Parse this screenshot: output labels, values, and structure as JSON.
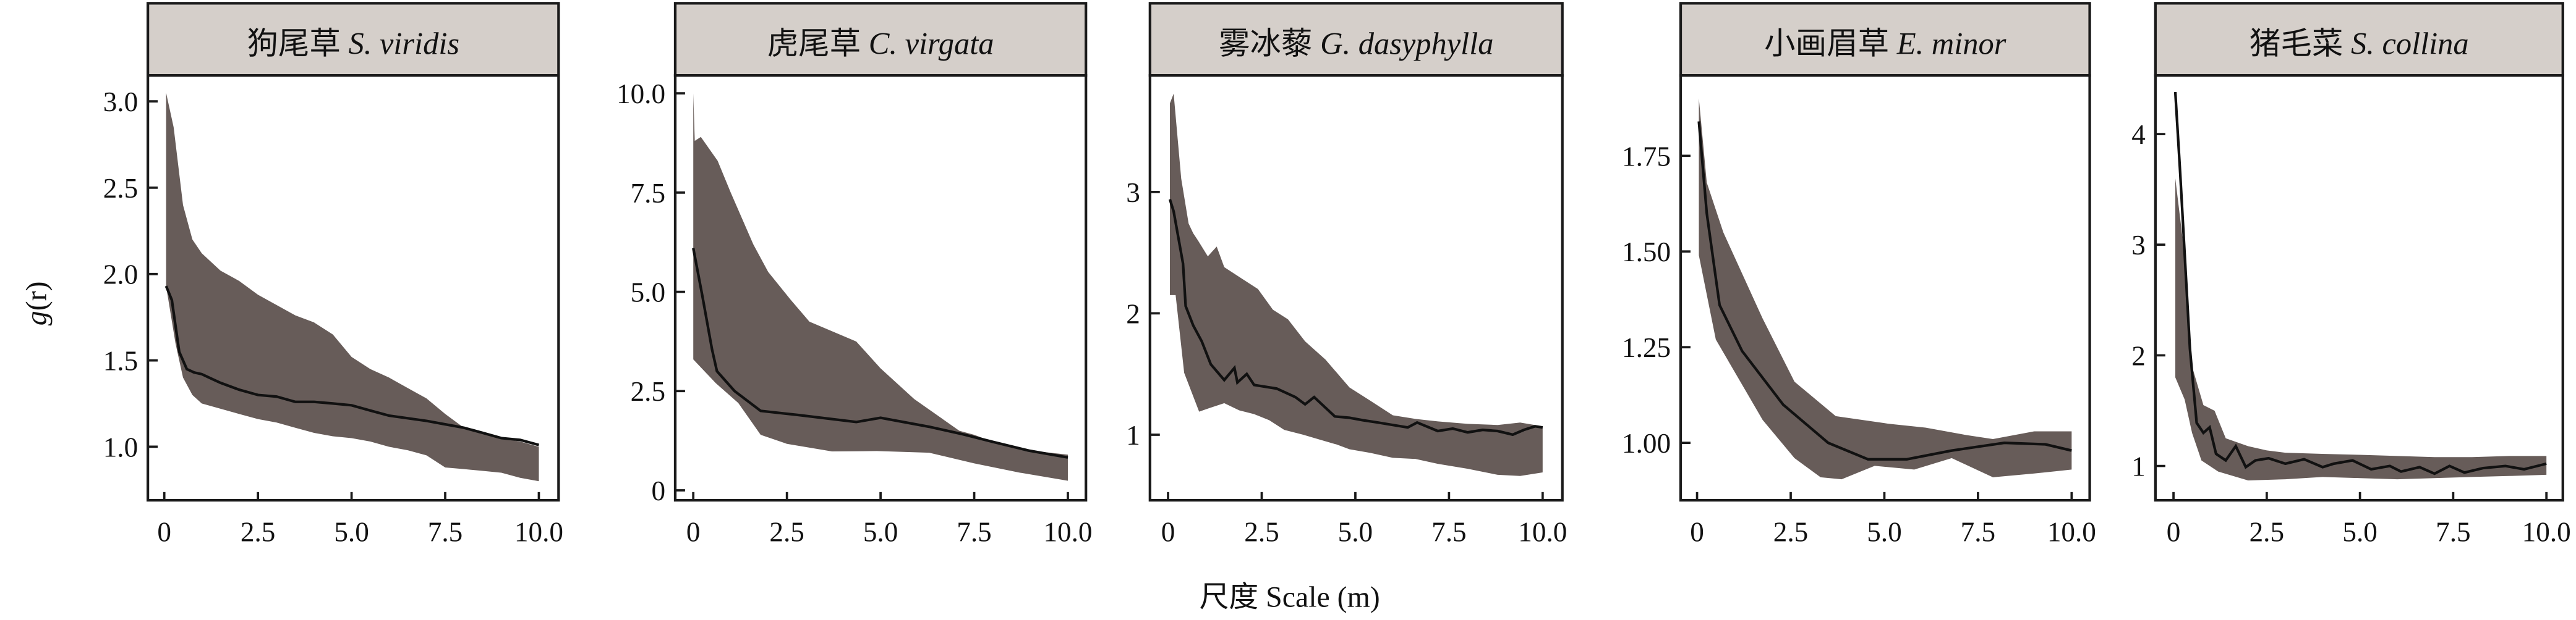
{
  "figure": {
    "ylabel_var": "g",
    "ylabel_arg": "(r)",
    "xlabel": "尺度 Scale (m)",
    "colors": {
      "envelope": "#675c59",
      "line": "#111111",
      "header": "#d5cfca",
      "frame": "#1a1a1a"
    }
  },
  "chart_data": [
    {
      "type": "line",
      "title_cn": "狗尾草",
      "title_latin": "S. viridis",
      "xlim": [
        0,
        10
      ],
      "ylim": [
        0.69,
        3.15
      ],
      "xticks": [
        0,
        2.5,
        5,
        7.5,
        10
      ],
      "xtick_labels": [
        "0",
        "2.5",
        "5.0",
        "7.5",
        "10.0"
      ],
      "yticks": [
        1.0,
        1.5,
        2.0,
        2.5,
        3.0
      ],
      "ytick_labels": [
        "1.0",
        "1.5",
        "2.0",
        "2.5",
        "3.0"
      ],
      "mean": {
        "x": [
          0.05,
          0.2,
          0.4,
          0.6,
          0.8,
          1.0,
          1.3,
          1.5,
          2.0,
          2.5,
          3.0,
          3.5,
          4.0,
          4.5,
          5.0,
          5.5,
          6.0,
          7.0,
          7.5,
          8.0,
          8.5,
          9.0,
          9.5,
          10.0
        ],
        "y": [
          1.93,
          1.85,
          1.55,
          1.45,
          1.43,
          1.42,
          1.39,
          1.37,
          1.33,
          1.3,
          1.29,
          1.26,
          1.26,
          1.25,
          1.24,
          1.21,
          1.18,
          1.15,
          1.13,
          1.11,
          1.08,
          1.05,
          1.04,
          1.01
        ]
      },
      "upper": {
        "x": [
          0.05,
          0.25,
          0.5,
          0.75,
          1.0,
          1.5,
          2.0,
          2.5,
          3.0,
          3.5,
          4.0,
          4.5,
          5.0,
          5.5,
          6.0,
          6.5,
          7.0,
          7.5,
          8.0,
          8.5,
          9.0,
          9.5,
          10.0
        ],
        "y": [
          3.05,
          2.85,
          2.4,
          2.2,
          2.12,
          2.02,
          1.96,
          1.88,
          1.82,
          1.76,
          1.72,
          1.65,
          1.52,
          1.45,
          1.4,
          1.34,
          1.28,
          1.19,
          1.11,
          1.08,
          1.05,
          1.03,
          1.0
        ]
      },
      "lower": {
        "x": [
          0.05,
          0.3,
          0.5,
          0.75,
          1.0,
          1.5,
          2.0,
          2.5,
          3.0,
          3.5,
          4.0,
          4.5,
          5.0,
          5.5,
          6.0,
          6.5,
          7.0,
          7.5,
          8.0,
          8.5,
          9.0,
          9.5,
          10.0
        ],
        "y": [
          1.93,
          1.6,
          1.4,
          1.3,
          1.25,
          1.22,
          1.19,
          1.16,
          1.14,
          1.11,
          1.08,
          1.06,
          1.05,
          1.03,
          1.0,
          0.98,
          0.95,
          0.88,
          0.87,
          0.86,
          0.85,
          0.82,
          0.8
        ]
      }
    },
    {
      "type": "line",
      "title_cn": "虎尾草",
      "title_latin": "C. virgata",
      "xlim": [
        0,
        10
      ],
      "ylim": [
        -0.25,
        10.45
      ],
      "xticks": [
        0,
        2.5,
        5,
        7.5,
        10
      ],
      "xtick_labels": [
        "0",
        "2.5",
        "5.0",
        "7.5",
        "10.0"
      ],
      "yticks": [
        0,
        2.5,
        5,
        7.5,
        10
      ],
      "ytick_labels": [
        "0",
        "2.5",
        "5.0",
        "7.5",
        "10.0"
      ],
      "mean": {
        "x": [
          0,
          0.24,
          0.5,
          0.63,
          1.1,
          1.8,
          2.8,
          4.35,
          5.0,
          6.3,
          7.2,
          8.0,
          8.95,
          10.0
        ],
        "y": [
          6.1,
          4.9,
          3.55,
          3.0,
          2.5,
          2.0,
          1.9,
          1.72,
          1.83,
          1.6,
          1.41,
          1.22,
          1.0,
          0.83
        ]
      },
      "upper": {
        "x": [
          0,
          0.04,
          0.2,
          0.65,
          1.0,
          1.6,
          2.0,
          2.6,
          3.1,
          4.35,
          5.0,
          5.9,
          7.1,
          7.5,
          8.0,
          9.0,
          10.0
        ],
        "y": [
          10.0,
          8.8,
          8.9,
          8.3,
          7.5,
          6.2,
          5.5,
          4.8,
          4.25,
          3.75,
          3.07,
          2.3,
          1.5,
          1.4,
          1.22,
          1.0,
          0.9
        ]
      },
      "lower": {
        "x": [
          0,
          0.6,
          1.2,
          1.8,
          2.5,
          3.7,
          4.9,
          6.3,
          7.5,
          8.7,
          10.0
        ],
        "y": [
          3.3,
          2.7,
          2.2,
          1.4,
          1.17,
          0.98,
          0.99,
          0.95,
          0.68,
          0.45,
          0.24
        ]
      }
    },
    {
      "type": "line",
      "title_cn": "雾冰藜",
      "title_latin": "G. dasyphylla",
      "xlim": [
        0,
        10
      ],
      "ylim": [
        0.46,
        3.96
      ],
      "xticks": [
        0,
        2.5,
        5,
        7.5,
        10
      ],
      "xtick_labels": [
        "0",
        "2.5",
        "5.0",
        "7.5",
        "10.0"
      ],
      "yticks": [
        1,
        2,
        3
      ],
      "ytick_labels": [
        "1",
        "2",
        "3"
      ],
      "mean": {
        "x": [
          0.05,
          0.15,
          0.4,
          0.47,
          0.67,
          0.9,
          1.14,
          1.5,
          1.77,
          1.85,
          2.1,
          2.3,
          2.9,
          3.4,
          3.66,
          3.9,
          4.45,
          4.84,
          5.2,
          5.6,
          6.0,
          6.4,
          6.65,
          7.2,
          7.6,
          8.0,
          8.4,
          8.8,
          9.2,
          9.5,
          9.8,
          10.0
        ],
        "y": [
          2.94,
          2.84,
          2.41,
          2.06,
          1.9,
          1.77,
          1.58,
          1.45,
          1.55,
          1.43,
          1.5,
          1.41,
          1.38,
          1.31,
          1.25,
          1.31,
          1.15,
          1.14,
          1.12,
          1.1,
          1.08,
          1.06,
          1.1,
          1.03,
          1.05,
          1.02,
          1.04,
          1.03,
          1.0,
          1.04,
          1.07,
          1.06
        ]
      },
      "upper": {
        "x": [
          0.05,
          0.15,
          0.35,
          0.55,
          0.67,
          0.8,
          1.06,
          1.3,
          1.5,
          2.0,
          2.4,
          2.8,
          3.2,
          3.66,
          4.2,
          4.84,
          5.4,
          6.0,
          6.6,
          7.2,
          8.0,
          8.8,
          9.4,
          10.0
        ],
        "y": [
          3.73,
          3.81,
          3.11,
          2.74,
          2.66,
          2.6,
          2.47,
          2.55,
          2.38,
          2.28,
          2.2,
          2.03,
          1.95,
          1.77,
          1.62,
          1.39,
          1.28,
          1.16,
          1.13,
          1.11,
          1.09,
          1.08,
          1.1,
          1.07
        ]
      },
      "lower": {
        "x": [
          0.05,
          0.2,
          0.43,
          0.83,
          1.1,
          1.5,
          1.9,
          2.3,
          2.7,
          3.1,
          3.6,
          4.05,
          4.5,
          4.84,
          5.4,
          6.0,
          6.6,
          7.2,
          8.0,
          8.8,
          9.4,
          10.0
        ],
        "y": [
          2.15,
          2.15,
          1.51,
          1.19,
          1.22,
          1.26,
          1.2,
          1.17,
          1.12,
          1.04,
          1.0,
          0.96,
          0.92,
          0.88,
          0.85,
          0.81,
          0.8,
          0.76,
          0.72,
          0.67,
          0.66,
          0.69
        ]
      }
    },
    {
      "type": "line",
      "title_cn": "小画眉草",
      "title_latin": "E. minor",
      "xlim": [
        0,
        10
      ],
      "ylim": [
        0.85,
        1.96
      ],
      "xticks": [
        0,
        2.5,
        5,
        7.5,
        10
      ],
      "xtick_labels": [
        "0",
        "2.5",
        "5.0",
        "7.5",
        "10.0"
      ],
      "yticks": [
        1.0,
        1.25,
        1.5,
        1.75
      ],
      "ytick_labels": [
        "1.00",
        "1.25",
        "1.50",
        "1.75"
      ],
      "mean": {
        "x": [
          0.05,
          0.26,
          0.6,
          1.2,
          2.3,
          3.5,
          4.56,
          5.6,
          6.8,
          8.2,
          9.3,
          10.0
        ],
        "y": [
          1.84,
          1.6,
          1.36,
          1.24,
          1.1,
          1.0,
          0.957,
          0.957,
          0.98,
          1.0,
          0.996,
          0.98
        ]
      },
      "upper": {
        "x": [
          0.05,
          0.26,
          0.7,
          1.75,
          2.6,
          3.7,
          5.1,
          6.1,
          7.2,
          7.9,
          9.0,
          10.0
        ],
        "y": [
          1.9,
          1.68,
          1.55,
          1.325,
          1.16,
          1.07,
          1.05,
          1.04,
          1.02,
          1.01,
          1.03,
          1.03
        ]
      },
      "lower": {
        "x": [
          0.05,
          0.5,
          1.75,
          2.6,
          3.3,
          3.86,
          4.74,
          5.8,
          6.8,
          7.9,
          9.0,
          10.0
        ],
        "y": [
          1.49,
          1.27,
          1.06,
          0.96,
          0.91,
          0.905,
          0.94,
          0.93,
          0.96,
          0.91,
          0.92,
          0.93
        ]
      }
    },
    {
      "type": "line",
      "title_cn": "猪毛菜",
      "title_latin": "S. collina",
      "xlim": [
        0,
        10
      ],
      "ylim": [
        0.69,
        4.53
      ],
      "xticks": [
        0,
        2.5,
        5,
        7.5,
        10
      ],
      "xtick_labels": [
        "0",
        "2.5",
        "5.0",
        "7.5",
        "10.0"
      ],
      "yticks": [
        1,
        2,
        3,
        4
      ],
      "ytick_labels": [
        "1",
        "2",
        "3",
        "4"
      ],
      "mean": {
        "x": [
          0.05,
          0.18,
          0.44,
          0.62,
          0.8,
          0.97,
          1.14,
          1.4,
          1.67,
          1.94,
          2.2,
          2.55,
          3.0,
          3.5,
          4.0,
          4.3,
          4.8,
          5.3,
          5.8,
          6.1,
          6.6,
          7.0,
          7.4,
          7.8,
          8.3,
          8.9,
          9.4,
          10.0
        ],
        "y": [
          4.38,
          3.64,
          2.06,
          1.39,
          1.3,
          1.35,
          1.11,
          1.05,
          1.18,
          0.99,
          1.05,
          1.07,
          1.02,
          1.06,
          0.99,
          1.02,
          1.05,
          0.97,
          1.0,
          0.95,
          0.99,
          0.93,
          1.0,
          0.94,
          0.98,
          1.0,
          0.97,
          1.02
        ]
      },
      "upper": {
        "x": [
          0.05,
          0.3,
          0.5,
          0.8,
          1.1,
          1.4,
          2.0,
          2.5,
          3.0,
          4.0,
          5.0,
          6.0,
          7.0,
          8.0,
          9.0,
          10.0
        ],
        "y": [
          3.6,
          2.9,
          1.9,
          1.55,
          1.5,
          1.25,
          1.18,
          1.14,
          1.12,
          1.11,
          1.1,
          1.09,
          1.08,
          1.08,
          1.09,
          1.09
        ]
      },
      "lower": {
        "x": [
          0.05,
          0.3,
          0.5,
          0.75,
          1.2,
          2.0,
          3.0,
          4.0,
          5.0,
          6.0,
          7.0,
          8.0,
          9.0,
          10.0
        ],
        "y": [
          1.8,
          1.6,
          1.3,
          1.05,
          0.95,
          0.87,
          0.88,
          0.9,
          0.89,
          0.88,
          0.89,
          0.9,
          0.91,
          0.92
        ]
      }
    }
  ]
}
